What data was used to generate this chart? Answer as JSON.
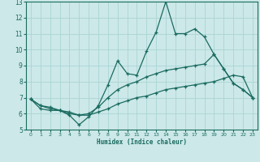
{
  "xlabel": "Humidex (Indice chaleur)",
  "background_color": "#cce8e8",
  "line_color": "#1a6b60",
  "grid_color": "#aad4d4",
  "xlim": [
    -0.5,
    23.5
  ],
  "ylim": [
    5,
    13
  ],
  "yticks": [
    5,
    6,
    7,
    8,
    9,
    10,
    11,
    12,
    13
  ],
  "xticks": [
    0,
    1,
    2,
    3,
    4,
    5,
    6,
    7,
    8,
    9,
    10,
    11,
    12,
    13,
    14,
    15,
    16,
    17,
    18,
    19,
    20,
    21,
    22,
    23
  ],
  "lines": [
    {
      "x": [
        0,
        1,
        2,
        3,
        4,
        5,
        6,
        7,
        8,
        9,
        10,
        11,
        12,
        13,
        14,
        15,
        16,
        17,
        18,
        19,
        20,
        21,
        22,
        23
      ],
      "y": [
        6.9,
        6.3,
        6.2,
        6.2,
        5.9,
        5.3,
        5.8,
        6.5,
        7.8,
        9.3,
        8.5,
        8.4,
        9.9,
        11.1,
        13.0,
        11.0,
        11.0,
        11.3,
        10.8,
        9.7,
        8.8,
        7.9,
        7.5,
        7.0
      ]
    },
    {
      "x": [
        0,
        1,
        2,
        3,
        4,
        5,
        6,
        7,
        8,
        9,
        10,
        11,
        12,
        13,
        14,
        15,
        16,
        17,
        18,
        19,
        20,
        21,
        22,
        23
      ],
      "y": [
        6.9,
        6.5,
        6.4,
        6.2,
        6.1,
        5.9,
        6.0,
        6.4,
        7.0,
        7.5,
        7.8,
        8.0,
        8.3,
        8.5,
        8.7,
        8.8,
        8.9,
        9.0,
        9.1,
        9.7,
        8.8,
        7.9,
        7.5,
        7.0
      ]
    },
    {
      "x": [
        0,
        1,
        2,
        3,
        4,
        5,
        6,
        7,
        8,
        9,
        10,
        11,
        12,
        13,
        14,
        15,
        16,
        17,
        18,
        19,
        20,
        21,
        22,
        23
      ],
      "y": [
        6.9,
        6.5,
        6.3,
        6.2,
        6.0,
        5.9,
        5.9,
        6.1,
        6.3,
        6.6,
        6.8,
        7.0,
        7.1,
        7.3,
        7.5,
        7.6,
        7.7,
        7.8,
        7.9,
        8.0,
        8.2,
        8.4,
        8.3,
        7.0
      ]
    }
  ]
}
